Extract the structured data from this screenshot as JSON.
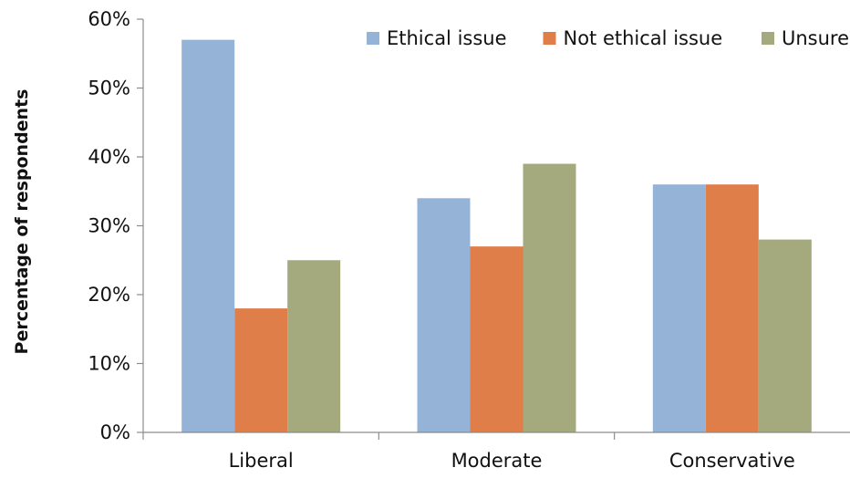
{
  "chart_data": {
    "type": "bar",
    "title": "",
    "xlabel": "",
    "ylabel": "Percentage of respondents",
    "ylim": [
      0,
      60
    ],
    "yticks": [
      0,
      10,
      20,
      30,
      40,
      50,
      60
    ],
    "ytick_labels": [
      "0%",
      "10%",
      "20%",
      "30%",
      "40%",
      "50%",
      "60%"
    ],
    "categories": [
      "Liberal",
      "Moderate",
      "Conservative"
    ],
    "series": [
      {
        "name": "Ethical issue",
        "color": "#95b3d7",
        "values": [
          57,
          34,
          36
        ]
      },
      {
        "name": "Not ethical issue",
        "color": "#e07e4a",
        "values": [
          18,
          27,
          36
        ]
      },
      {
        "name": "Unsure",
        "color": "#a4aa7d",
        "values": [
          25,
          39,
          28
        ]
      }
    ],
    "legend_position": "top-right",
    "grid": false
  }
}
